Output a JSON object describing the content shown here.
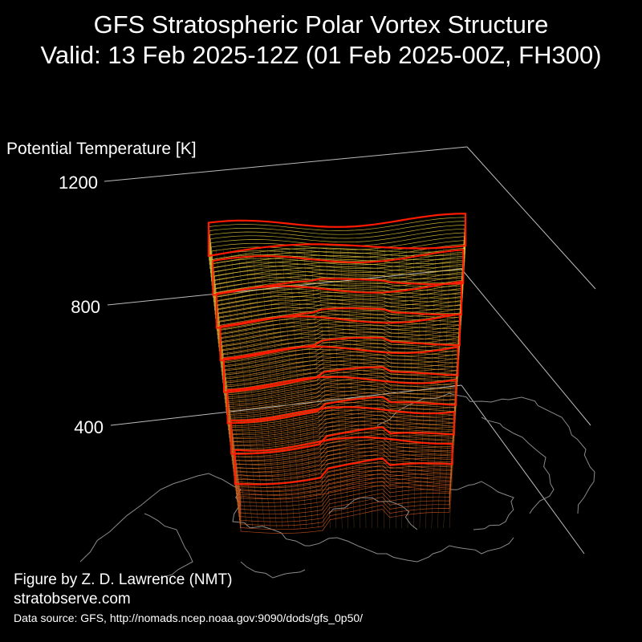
{
  "chart_data": {
    "type": "3d-isosurface",
    "title": "GFS Stratospheric Polar Vortex Structure",
    "subtitle": "Valid: 13 Feb 2025-12Z  (01 Feb 2025-00Z, FH300)",
    "zlabel": "Potential Temperature [K]",
    "zticks": [
      "1200",
      "800",
      "400"
    ],
    "zlim": [
      400,
      1200
    ],
    "highlight_levels": [
      400,
      500,
      600,
      700,
      800,
      900,
      1000
    ],
    "colors": {
      "background": "#000000",
      "highlight_contour": "#ff1a00",
      "upper_contour": "#e6d23c",
      "lower_contour": "#c8501e",
      "coastline": "#8a8a8a",
      "axes": "#bbbbbb"
    }
  },
  "credits": {
    "author": "Figure by Z. D. Lawrence (NMT)",
    "site": "stratobserve.com",
    "source": "Data source: GFS, http://nomads.ncep.noaa.gov:9090/dods/gfs_0p50/"
  }
}
